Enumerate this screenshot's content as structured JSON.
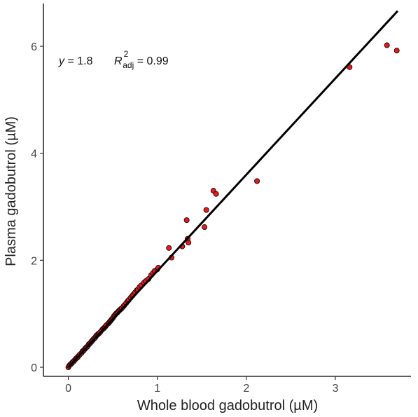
{
  "chart_data": {
    "type": "scatter",
    "xlabel": "Whole blood gadobutrol (µM)",
    "ylabel": "Plasma gadobutrol (µM)",
    "xlim": [
      -0.28,
      3.85
    ],
    "ylim": [
      -0.17,
      6.8
    ],
    "x_ticks": [
      0,
      1,
      2,
      3
    ],
    "y_ticks": [
      0,
      2,
      4,
      6
    ],
    "grid": false,
    "point_color": "#e41a1c",
    "point_edge_color": "#000000",
    "line_color": "#000000",
    "fit_line": {
      "slope": 1.8,
      "intercept": 0,
      "x_range": [
        0,
        3.7
      ]
    },
    "annotation": {
      "y_lhs": "y",
      "eq_rest": " = 1.8",
      "r_symbol": "R",
      "r_sup": "2",
      "r_sub": "adj",
      "r_rest": " = 0.99"
    },
    "series": [
      {
        "x": [
          0.0,
          0.01,
          0.02,
          0.03,
          0.04,
          0.05,
          0.06,
          0.07,
          0.08,
          0.09,
          0.1,
          0.11,
          0.12,
          0.13,
          0.15,
          0.16,
          0.17,
          0.18,
          0.19,
          0.2,
          0.21,
          0.22,
          0.23,
          0.24,
          0.25,
          0.26,
          0.27,
          0.28,
          0.29,
          0.3,
          0.31,
          0.32,
          0.33,
          0.34,
          0.35,
          0.36,
          0.38,
          0.39,
          0.4,
          0.41,
          0.42,
          0.43,
          0.45,
          0.46,
          0.47,
          0.48,
          0.49,
          0.5,
          0.51,
          0.52,
          0.53,
          0.54,
          0.55,
          0.56,
          0.57,
          0.58,
          0.59,
          0.6,
          0.62,
          0.63,
          0.65,
          0.67,
          0.68,
          0.7,
          0.72,
          0.73,
          0.75,
          0.77,
          0.78,
          0.8,
          0.82,
          0.85,
          0.87,
          0.9,
          0.93,
          0.95,
          0.97,
          1.0,
          1.01,
          1.13,
          1.16,
          1.28,
          1.33,
          1.34,
          1.35,
          1.53,
          1.55,
          1.63,
          1.66,
          2.12,
          3.16,
          3.58,
          3.69
        ],
        "y": [
          0.0,
          0.03,
          0.05,
          0.06,
          0.08,
          0.1,
          0.11,
          0.13,
          0.15,
          0.17,
          0.18,
          0.2,
          0.22,
          0.24,
          0.27,
          0.3,
          0.31,
          0.33,
          0.35,
          0.37,
          0.38,
          0.4,
          0.43,
          0.44,
          0.46,
          0.48,
          0.5,
          0.52,
          0.54,
          0.55,
          0.58,
          0.6,
          0.61,
          0.63,
          0.64,
          0.66,
          0.7,
          0.72,
          0.73,
          0.75,
          0.77,
          0.79,
          0.82,
          0.84,
          0.86,
          0.88,
          0.9,
          0.92,
          0.95,
          0.97,
          0.99,
          1.01,
          1.02,
          1.04,
          1.06,
          1.07,
          1.09,
          1.1,
          1.14,
          1.16,
          1.2,
          1.24,
          1.26,
          1.3,
          1.34,
          1.36,
          1.4,
          1.44,
          1.45,
          1.5,
          1.53,
          1.58,
          1.61,
          1.65,
          1.72,
          1.76,
          1.8,
          1.83,
          1.86,
          2.23,
          2.05,
          2.26,
          2.75,
          2.4,
          2.33,
          2.62,
          2.94,
          3.3,
          3.24,
          3.48,
          5.61,
          6.02,
          5.92
        ]
      }
    ]
  }
}
